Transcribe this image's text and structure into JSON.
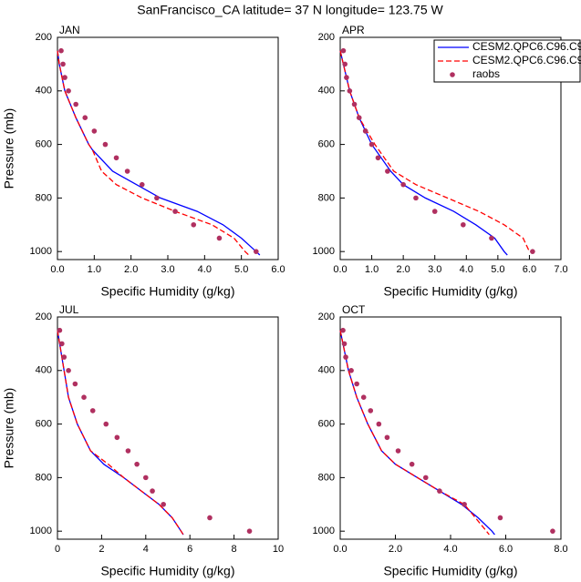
{
  "title": "SanFrancisco_CA  latitude= 37 N longitude= 123.75 W",
  "chart_data": [
    {
      "type": "line",
      "title": "JAN",
      "xlabel": "Specific Humidity (g/kg)",
      "ylabel": "Pressure (mb)",
      "xlim": [
        0,
        6
      ],
      "xticks": [
        {
          "value": 0,
          "label": "0.0"
        },
        {
          "value": 1,
          "label": "1.0"
        },
        {
          "value": 2,
          "label": "2.0"
        },
        {
          "value": 3,
          "label": "3.0"
        },
        {
          "value": 4,
          "label": "4.0"
        },
        {
          "value": 5,
          "label": "5.0"
        },
        {
          "value": 6,
          "label": "6.0"
        }
      ],
      "ylim": [
        1030,
        200
      ],
      "yticks": [
        200,
        400,
        600,
        800,
        1000
      ],
      "series": [
        {
          "color": "#0000ff",
          "style": "solid",
          "x": [
            0,
            0.05,
            0.2,
            0.5,
            0.85,
            0.95,
            1.5,
            2.8,
            3.8,
            4.5,
            5.0,
            5.4,
            5.5
          ],
          "y": [
            250,
            300,
            400,
            500,
            600,
            620,
            700,
            800,
            850,
            900,
            950,
            1000,
            1013
          ]
        },
        {
          "color": "#ff0000",
          "style": "dashed",
          "x": [
            0,
            0.05,
            0.2,
            0.5,
            0.85,
            0.95,
            1.2,
            1.6,
            2.3,
            3.2,
            4.2,
            4.8,
            5.1,
            5.2
          ],
          "y": [
            250,
            300,
            400,
            500,
            600,
            620,
            700,
            750,
            800,
            850,
            900,
            950,
            1000,
            1013
          ]
        },
        {
          "color": "#b03060",
          "style": "markers",
          "x": [
            0.1,
            0.15,
            0.2,
            0.3,
            0.5,
            0.75,
            1.0,
            1.3,
            1.6,
            1.9,
            2.3,
            2.7,
            3.2,
            3.7,
            4.4,
            5.4
          ],
          "y": [
            250,
            300,
            350,
            400,
            450,
            500,
            550,
            600,
            650,
            700,
            750,
            800,
            850,
            900,
            950,
            1000
          ]
        }
      ]
    },
    {
      "type": "line",
      "title": "APR",
      "xlabel": "Specific Humidity (g/kg)",
      "legend": "upper right",
      "xlim": [
        0,
        7
      ],
      "xticks": [
        {
          "value": 0,
          "label": "0.0"
        },
        {
          "value": 1,
          "label": "1.0"
        },
        {
          "value": 2,
          "label": "2.0"
        },
        {
          "value": 3,
          "label": "3.0"
        },
        {
          "value": 4,
          "label": "4.0"
        },
        {
          "value": 5,
          "label": "5.0"
        },
        {
          "value": 6,
          "label": "6.0"
        },
        {
          "value": 7,
          "label": "7.0"
        }
      ],
      "ylim": [
        1030,
        200
      ],
      "yticks": [
        200,
        400,
        600,
        800,
        1000
      ],
      "series": [
        {
          "name": "CESM2.QPC6.C96.C9",
          "color": "#0000ff",
          "style": "solid",
          "x": [
            0,
            0.1,
            0.3,
            0.6,
            1.0,
            1.6,
            2.0,
            2.7,
            3.6,
            4.3,
            4.9,
            5.2,
            5.3
          ],
          "y": [
            250,
            300,
            400,
            500,
            600,
            700,
            750,
            800,
            850,
            900,
            950,
            1000,
            1013
          ]
        },
        {
          "name": "CESM2.QPC6.C96.C9",
          "color": "#ff0000",
          "style": "dashed",
          "x": [
            0,
            0.1,
            0.3,
            0.6,
            1.1,
            1.7,
            2.4,
            3.4,
            4.4,
            5.2,
            5.8,
            6.0
          ],
          "y": [
            250,
            300,
            400,
            500,
            600,
            700,
            750,
            800,
            850,
            900,
            950,
            1000
          ]
        },
        {
          "name": "raobs",
          "color": "#b03060",
          "style": "markers",
          "x": [
            0.1,
            0.15,
            0.2,
            0.3,
            0.45,
            0.6,
            0.8,
            1.0,
            1.2,
            1.5,
            2.0,
            2.4,
            3.0,
            3.9,
            4.8,
            6.1
          ],
          "y": [
            250,
            300,
            350,
            400,
            450,
            500,
            550,
            600,
            650,
            700,
            750,
            800,
            850,
            900,
            950,
            1000
          ]
        }
      ]
    },
    {
      "type": "line",
      "title": "JUL",
      "xlabel": "Specific Humidity (g/kg)",
      "ylabel": "Pressure (mb)",
      "xlim": [
        0,
        10
      ],
      "xticks": [
        0,
        2,
        4,
        6,
        8,
        10
      ],
      "ylim": [
        1030,
        200
      ],
      "yticks": [
        200,
        400,
        600,
        800,
        1000
      ],
      "series": [
        {
          "color": "#0000ff",
          "style": "solid",
          "x": [
            0,
            0.1,
            0.3,
            0.5,
            0.9,
            1.5,
            2.1,
            3.0,
            3.8,
            4.6,
            5.2,
            5.6,
            5.7
          ],
          "y": [
            250,
            300,
            400,
            500,
            600,
            700,
            750,
            800,
            850,
            900,
            950,
            1000,
            1013
          ]
        },
        {
          "color": "#ff0000",
          "style": "dashed",
          "x": [
            0,
            0.1,
            0.3,
            0.5,
            0.9,
            1.5,
            2.3,
            3.0,
            3.8,
            4.6,
            5.2,
            5.6,
            5.7
          ],
          "y": [
            250,
            300,
            400,
            500,
            600,
            700,
            750,
            800,
            850,
            900,
            950,
            1000,
            1013
          ]
        },
        {
          "color": "#b03060",
          "style": "markers",
          "x": [
            0.1,
            0.2,
            0.3,
            0.5,
            0.8,
            1.2,
            1.6,
            2.2,
            2.7,
            3.2,
            3.6,
            4.0,
            4.3,
            4.8,
            6.9,
            8.7
          ],
          "y": [
            250,
            300,
            350,
            400,
            450,
            500,
            550,
            600,
            650,
            700,
            750,
            800,
            850,
            900,
            950,
            1000
          ]
        }
      ]
    },
    {
      "type": "line",
      "title": "OCT",
      "xlabel": "Specific Humidity (g/kg)",
      "xlim": [
        0,
        8
      ],
      "xticks": [
        {
          "value": 0,
          "label": "0.0"
        },
        {
          "value": 2,
          "label": "2.0"
        },
        {
          "value": 4,
          "label": "4.0"
        },
        {
          "value": 6,
          "label": "6.0"
        },
        {
          "value": 8,
          "label": "8.0"
        }
      ],
      "ylim": [
        1030,
        200
      ],
      "yticks": [
        200,
        400,
        600,
        800,
        1000
      ],
      "series": [
        {
          "color": "#0000ff",
          "style": "solid",
          "x": [
            0,
            0.1,
            0.3,
            0.6,
            1.0,
            1.5,
            2.0,
            2.8,
            3.6,
            4.4,
            5.0,
            5.5,
            5.6
          ],
          "y": [
            250,
            300,
            400,
            500,
            600,
            700,
            750,
            800,
            850,
            900,
            950,
            1000,
            1013
          ]
        },
        {
          "color": "#ff0000",
          "style": "dashed",
          "x": [
            0,
            0.1,
            0.3,
            0.6,
            1.0,
            1.5,
            2.0,
            2.8,
            3.6,
            4.5,
            4.9,
            5.3,
            5.4
          ],
          "y": [
            250,
            300,
            400,
            500,
            600,
            700,
            750,
            800,
            850,
            900,
            950,
            1000,
            1013
          ]
        },
        {
          "color": "#b03060",
          "style": "markers",
          "x": [
            0.1,
            0.15,
            0.2,
            0.4,
            0.6,
            0.85,
            1.1,
            1.4,
            1.7,
            2.1,
            2.6,
            3.1,
            3.6,
            4.5,
            5.8,
            7.7
          ],
          "y": [
            250,
            300,
            350,
            400,
            450,
            500,
            550,
            600,
            650,
            700,
            750,
            800,
            850,
            900,
            950,
            1000
          ]
        }
      ]
    }
  ]
}
